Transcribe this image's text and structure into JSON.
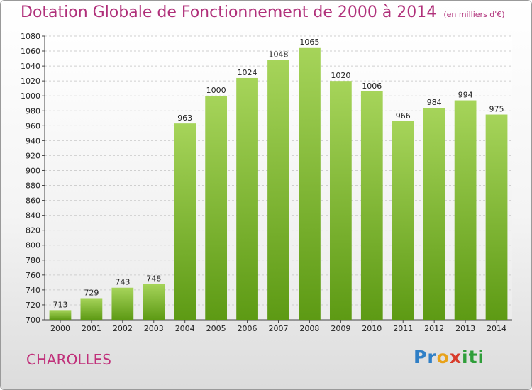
{
  "title": "Dotation Globale de Fonctionnement de 2000 à 2014",
  "subtitle": "(en milliers d'€)",
  "city": "CHAROLLES",
  "logo": {
    "letters": [
      "P",
      "r",
      "o",
      "x",
      "i",
      "t",
      "i"
    ],
    "colors": [
      "#2f7fc6",
      "#2f7fc6",
      "#e8a21a",
      "#d83b2b",
      "#2f9e3a",
      "#2f9e3a",
      "#2f9e3a"
    ]
  },
  "colors": {
    "bar_light": "#a6d45a",
    "bar_dark": "#5d9a14",
    "title": "#b0307a",
    "grid": "#cfcfcf"
  },
  "chart_data": {
    "type": "bar",
    "categories": [
      "2000",
      "2001",
      "2002",
      "2003",
      "2004",
      "2005",
      "2006",
      "2007",
      "2008",
      "2009",
      "2010",
      "2011",
      "2012",
      "2013",
      "2014"
    ],
    "values": [
      713,
      729,
      743,
      748,
      963,
      1000,
      1024,
      1048,
      1065,
      1020,
      1006,
      966,
      984,
      994,
      975
    ],
    "ylim": [
      700,
      1080
    ],
    "yticks": [
      700,
      720,
      740,
      760,
      780,
      800,
      820,
      840,
      860,
      880,
      900,
      920,
      940,
      960,
      980,
      1000,
      1020,
      1040,
      1060,
      1080
    ],
    "grid": true,
    "grid_axis": "y",
    "legend": "none"
  }
}
